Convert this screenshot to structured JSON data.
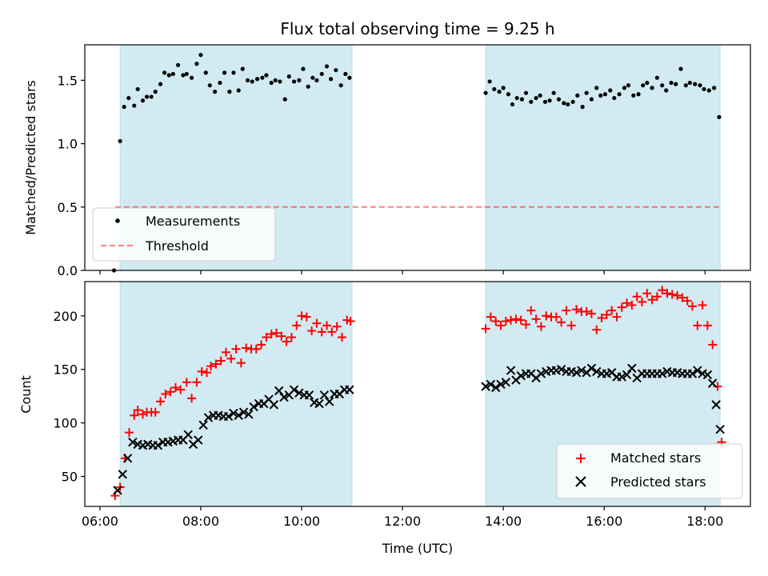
{
  "chart_data": {
    "type": "scatter",
    "title": "Flux total observing time = 9.25 h",
    "xlabel": "Time (UTC)",
    "x_ticks": [
      "06:00",
      "08:00",
      "10:00",
      "12:00",
      "14:00",
      "16:00",
      "18:00"
    ],
    "x_tick_hours": [
      6,
      8,
      10,
      12,
      14,
      16,
      18
    ],
    "xlim_hours": [
      5.7,
      18.9
    ],
    "shaded_intervals_hours": [
      [
        6.4,
        11.0
      ],
      [
        13.65,
        18.3
      ]
    ],
    "colors": {
      "shade": "#add8e6",
      "measurements": "#000000",
      "threshold": "#ff0000",
      "matched": "#ff0000",
      "predicted": "#000000"
    },
    "top_panel": {
      "ylabel": "Matched/Predicted stars",
      "ylim": [
        0,
        1.78
      ],
      "y_ticks": [
        "0.0",
        "0.5",
        "1.0",
        "1.5"
      ],
      "y_tick_values": [
        0,
        0.5,
        1.0,
        1.5
      ],
      "threshold": 0.5,
      "threshold_range_hours": [
        6.3,
        18.3
      ],
      "legend": {
        "position": "lower-left",
        "entries": [
          "Measurements",
          "Threshold"
        ]
      },
      "series": [
        {
          "name": "Measurements",
          "x_hours": [
            6.28,
            6.4,
            6.48,
            6.57,
            6.68,
            6.75,
            6.85,
            6.93,
            7.02,
            7.1,
            7.2,
            7.28,
            7.37,
            7.45,
            7.55,
            7.65,
            7.72,
            7.82,
            7.92,
            8.0,
            8.1,
            8.18,
            8.28,
            8.38,
            8.47,
            8.57,
            8.65,
            8.75,
            8.83,
            8.93,
            9.02,
            9.12,
            9.22,
            9.3,
            9.4,
            9.48,
            9.57,
            9.67,
            9.75,
            9.85,
            9.95,
            10.03,
            10.13,
            10.22,
            10.3,
            10.4,
            10.5,
            10.58,
            10.68,
            10.78,
            10.87,
            10.95,
            13.65,
            13.73,
            13.82,
            13.92,
            14.0,
            14.1,
            14.18,
            14.27,
            14.37,
            14.45,
            14.55,
            14.65,
            14.73,
            14.83,
            14.92,
            15.0,
            15.1,
            15.2,
            15.28,
            15.38,
            15.47,
            15.57,
            15.65,
            15.75,
            15.85,
            15.93,
            16.02,
            16.12,
            16.2,
            16.3,
            16.4,
            16.48,
            16.58,
            16.68,
            16.77,
            16.85,
            16.95,
            17.05,
            17.15,
            17.23,
            17.33,
            17.42,
            17.52,
            17.62,
            17.7,
            17.8,
            17.9,
            17.98,
            18.08,
            18.18,
            18.28
          ],
          "y": [
            0.0,
            1.02,
            1.29,
            1.36,
            1.3,
            1.43,
            1.34,
            1.37,
            1.37,
            1.41,
            1.47,
            1.56,
            1.54,
            1.55,
            1.62,
            1.54,
            1.55,
            1.52,
            1.63,
            1.7,
            1.56,
            1.46,
            1.41,
            1.48,
            1.56,
            1.41,
            1.56,
            1.42,
            1.59,
            1.5,
            1.49,
            1.51,
            1.52,
            1.54,
            1.48,
            1.5,
            1.49,
            1.35,
            1.53,
            1.49,
            1.5,
            1.59,
            1.45,
            1.52,
            1.5,
            1.55,
            1.61,
            1.51,
            1.58,
            1.46,
            1.55,
            1.52,
            1.4,
            1.49,
            1.43,
            1.41,
            1.44,
            1.39,
            1.31,
            1.36,
            1.35,
            1.4,
            1.33,
            1.36,
            1.38,
            1.33,
            1.34,
            1.4,
            1.35,
            1.32,
            1.31,
            1.33,
            1.38,
            1.29,
            1.4,
            1.35,
            1.44,
            1.38,
            1.39,
            1.42,
            1.36,
            1.39,
            1.44,
            1.46,
            1.38,
            1.39,
            1.46,
            1.48,
            1.44,
            1.52,
            1.46,
            1.42,
            1.48,
            1.47,
            1.59,
            1.46,
            1.48,
            1.47,
            1.46,
            1.43,
            1.42,
            1.44,
            1.21
          ]
        }
      ]
    },
    "bottom_panel": {
      "ylabel": "Count",
      "ylim": [
        22,
        232
      ],
      "y_ticks": [
        "50",
        "100",
        "150",
        "200"
      ],
      "y_tick_values": [
        50,
        100,
        150,
        200
      ],
      "legend": {
        "position": "lower-right",
        "entries": [
          "Matched stars",
          "Predicted stars"
        ]
      },
      "series": [
        {
          "name": "Matched stars",
          "marker": "plus",
          "x_hours": [
            6.3,
            6.4,
            6.5,
            6.58,
            6.68,
            6.75,
            6.85,
            6.93,
            7.02,
            7.1,
            7.2,
            7.3,
            7.4,
            7.5,
            7.6,
            7.72,
            7.82,
            7.92,
            8.02,
            8.12,
            8.2,
            8.3,
            8.4,
            8.5,
            8.6,
            8.7,
            8.8,
            8.9,
            9.0,
            9.1,
            9.2,
            9.3,
            9.4,
            9.5,
            9.6,
            9.7,
            9.8,
            9.9,
            10.0,
            10.1,
            10.2,
            10.3,
            10.4,
            10.5,
            10.6,
            10.7,
            10.8,
            10.9,
            10.97,
            13.65,
            13.75,
            13.85,
            13.95,
            14.05,
            14.15,
            14.25,
            14.35,
            14.45,
            14.55,
            14.65,
            14.75,
            14.85,
            14.95,
            15.05,
            15.15,
            15.25,
            15.35,
            15.45,
            15.55,
            15.65,
            15.75,
            15.85,
            15.95,
            16.05,
            16.15,
            16.25,
            16.35,
            16.45,
            16.55,
            16.65,
            16.75,
            16.85,
            16.95,
            17.05,
            17.15,
            17.25,
            17.35,
            17.45,
            17.55,
            17.65,
            17.75,
            17.85,
            17.95,
            18.05,
            18.15,
            18.25,
            18.33
          ],
          "y": [
            32,
            40,
            67,
            91,
            107,
            112,
            108,
            110,
            110,
            110,
            120,
            127,
            129,
            133,
            131,
            138,
            123,
            138,
            148,
            147,
            153,
            155,
            158,
            166,
            160,
            169,
            156,
            170,
            169,
            169,
            173,
            180,
            183,
            184,
            181,
            176,
            180,
            191,
            200,
            199,
            186,
            193,
            185,
            191,
            185,
            190,
            180,
            196,
            195,
            188,
            199,
            195,
            191,
            195,
            196,
            197,
            196,
            192,
            205,
            197,
            190,
            200,
            199,
            199,
            194,
            205,
            191,
            206,
            204,
            204,
            202,
            187,
            198,
            201,
            205,
            199,
            208,
            212,
            210,
            218,
            213,
            221,
            215,
            218,
            224,
            221,
            220,
            219,
            217,
            214,
            209,
            191,
            210,
            191,
            173,
            134,
            82
          ]
        },
        {
          "name": "Predicted stars",
          "marker": "x",
          "x_hours": [
            6.35,
            6.45,
            6.55,
            6.65,
            6.75,
            6.85,
            6.95,
            7.05,
            7.15,
            7.25,
            7.35,
            7.45,
            7.55,
            7.65,
            7.75,
            7.85,
            7.95,
            8.05,
            8.15,
            8.25,
            8.35,
            8.45,
            8.55,
            8.65,
            8.75,
            8.85,
            8.95,
            9.05,
            9.15,
            9.25,
            9.35,
            9.45,
            9.55,
            9.65,
            9.75,
            9.85,
            9.95,
            10.05,
            10.15,
            10.25,
            10.35,
            10.45,
            10.55,
            10.65,
            10.75,
            10.85,
            10.95,
            13.65,
            13.75,
            13.85,
            13.95,
            14.05,
            14.15,
            14.25,
            14.35,
            14.45,
            14.55,
            14.65,
            14.75,
            14.85,
            14.95,
            15.05,
            15.15,
            15.25,
            15.35,
            15.45,
            15.55,
            15.65,
            15.75,
            15.85,
            15.95,
            16.05,
            16.15,
            16.25,
            16.35,
            16.45,
            16.55,
            16.65,
            16.75,
            16.85,
            16.95,
            17.05,
            17.15,
            17.25,
            17.35,
            17.45,
            17.55,
            17.65,
            17.75,
            17.85,
            17.95,
            18.05,
            18.15,
            18.22,
            18.3
          ],
          "y": [
            37,
            52,
            67,
            82,
            80,
            79,
            80,
            79,
            79,
            82,
            82,
            83,
            84,
            84,
            89,
            80,
            84,
            98,
            105,
            107,
            107,
            106,
            106,
            109,
            107,
            110,
            108,
            115,
            118,
            118,
            122,
            117,
            130,
            124,
            126,
            131,
            128,
            126,
            126,
            119,
            118,
            126,
            120,
            127,
            127,
            131,
            131,
            134,
            136,
            133,
            136,
            138,
            149,
            140,
            144,
            146,
            146,
            142,
            146,
            148,
            149,
            149,
            150,
            148,
            148,
            147,
            149,
            147,
            151,
            148,
            146,
            146,
            147,
            143,
            143,
            145,
            151,
            142,
            146,
            146,
            146,
            146,
            146,
            148,
            147,
            147,
            146,
            146,
            146,
            149,
            146,
            145,
            137,
            117,
            94
          ]
        }
      ]
    }
  }
}
